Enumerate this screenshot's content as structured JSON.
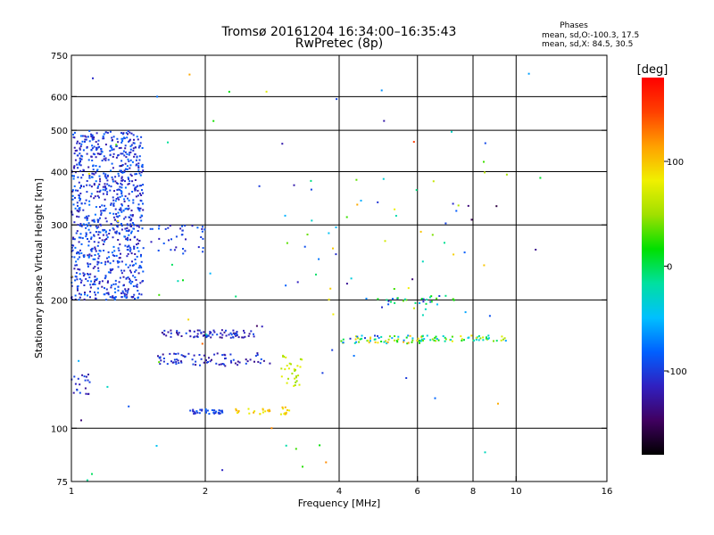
{
  "chart_data": {
    "type": "scatter",
    "title": "Tromsø 20161204 16:34:00–16:35:43",
    "subtitle": "RwPretec (8p)",
    "xlabel": "Frequency [MHz]",
    "ylabel": "Stationary phase Virtual Height [km]",
    "x_scale": "log",
    "y_scale": "log",
    "xlim": [
      1,
      16
    ],
    "ylim": [
      75,
      750
    ],
    "x_ticks": [
      1,
      2,
      4,
      6,
      8,
      10,
      16
    ],
    "y_ticks": [
      75,
      100,
      200,
      300,
      400,
      500,
      600,
      750
    ],
    "x_gridlines": [
      1,
      2,
      4,
      6,
      8,
      10,
      16
    ],
    "y_gridlines": [
      100,
      200,
      300,
      400,
      500,
      600
    ],
    "grid": true,
    "stats": {
      "header": "Phases",
      "line_o": "mean, sd,O:-100.3, 17.5",
      "line_x": "mean, sd,X:  84.5, 30.5"
    },
    "colorbar": {
      "label": "[deg]",
      "range": [
        -180,
        180
      ],
      "ticks": [
        100,
        0,
        -100
      ],
      "palette": [
        "#000000",
        "#400060",
        "#3020c0",
        "#0060ff",
        "#00c0ff",
        "#00e0a0",
        "#00e000",
        "#a0e000",
        "#f0f000",
        "#ffa000",
        "#ff4000",
        "#ff0000"
      ]
    },
    "clusters": [
      {
        "x": [
          1.0,
          1.45
        ],
        "y": [
          200,
          500
        ],
        "n": 900,
        "phase": [
          -125,
          -75
        ]
      },
      {
        "x": [
          1.45,
          2.0
        ],
        "y": [
          255,
          300
        ],
        "n": 40,
        "phase": [
          -120,
          -80
        ]
      },
      {
        "x": [
          1.6,
          2.6
        ],
        "y": [
          163,
          170
        ],
        "n": 80,
        "phase": [
          -135,
          -90
        ]
      },
      {
        "x": [
          1.55,
          2.8
        ],
        "y": [
          140,
          150
        ],
        "n": 80,
        "phase": [
          -135,
          -90
        ]
      },
      {
        "x": [
          1.85,
          2.2
        ],
        "y": [
          108,
          111
        ],
        "n": 35,
        "phase": [
          -120,
          -80
        ]
      },
      {
        "x": [
          2.3,
          2.8
        ],
        "y": [
          108,
          111
        ],
        "n": 20,
        "phase": [
          75,
          115
        ]
      },
      {
        "x": [
          2.95,
          3.1
        ],
        "y": [
          107,
          112
        ],
        "n": 12,
        "phase": [
          75,
          110
        ]
      },
      {
        "x": [
          2.95,
          3.3
        ],
        "y": [
          125,
          150
        ],
        "n": 30,
        "phase": [
          45,
          80
        ]
      },
      {
        "x": [
          4.0,
          6.2
        ],
        "y": [
          158,
          165
        ],
        "n": 60,
        "phase": [
          -110,
          120
        ]
      },
      {
        "x": [
          6.0,
          9.5
        ],
        "y": [
          160,
          165
        ],
        "n": 55,
        "phase": [
          -60,
          100
        ]
      },
      {
        "x": [
          4.6,
          7.4
        ],
        "y": [
          195,
          205
        ],
        "n": 30,
        "phase": [
          -110,
          40
        ]
      },
      {
        "x": [
          1.0,
          1.1
        ],
        "y": [
          120,
          135
        ],
        "n": 20,
        "phase": [
          -130,
          -90
        ]
      },
      {
        "x": [
          3.0,
          8.5
        ],
        "y": [
          180,
          420
        ],
        "n": 45,
        "phase": [
          -140,
          110
        ]
      },
      {
        "x": [
          1.0,
          12.0
        ],
        "y": [
          75,
          700
        ],
        "n": 70,
        "phase": [
          -160,
          150
        ]
      }
    ]
  }
}
